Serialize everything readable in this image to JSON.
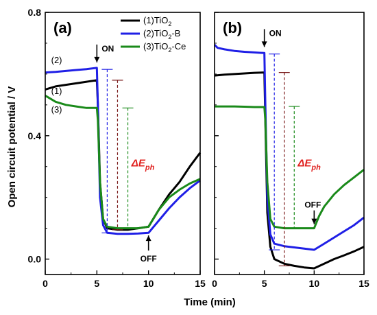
{
  "chart_data": [
    {
      "type": "line",
      "panel_label": "(a)",
      "xlabel": "Time (min)",
      "ylabel": "Open circuit potential / V",
      "xlim": [
        0,
        15
      ],
      "ylim": [
        -0.05,
        0.8
      ],
      "xticks": [
        "0",
        "5",
        "10",
        "15"
      ],
      "yticks": [
        "0.0",
        "0.4",
        "0.8"
      ],
      "legend": {
        "placement": "top-right",
        "entries": [
          {
            "prefix": "(1)TiO",
            "sub": "2",
            "suffix": "",
            "color": "#000000"
          },
          {
            "prefix": "(2)TiO",
            "sub": "2",
            "suffix": "-B",
            "color": "#1f1fe6"
          },
          {
            "prefix": "(3)TiO",
            "sub": "2",
            "suffix": "-Ce",
            "color": "#1a8a1a"
          }
        ]
      },
      "series": [
        {
          "name": "(1)TiO2",
          "color": "#000000",
          "x": [
            0,
            1,
            2,
            3,
            4,
            5,
            5.1,
            5.3,
            5.6,
            6,
            7,
            8,
            9,
            10,
            11,
            12,
            13,
            14,
            15
          ],
          "y": [
            0.55,
            0.56,
            0.565,
            0.57,
            0.575,
            0.58,
            0.5,
            0.25,
            0.13,
            0.1,
            0.095,
            0.095,
            0.1,
            0.105,
            0.16,
            0.21,
            0.25,
            0.3,
            0.345
          ]
        },
        {
          "name": "(2)TiO2-B",
          "color": "#1f1fe6",
          "x": [
            0,
            1,
            2,
            3,
            4,
            5,
            5.1,
            5.3,
            5.6,
            6,
            7,
            8,
            9,
            10,
            11,
            12,
            13,
            14,
            15
          ],
          "y": [
            0.605,
            0.607,
            0.61,
            0.613,
            0.616,
            0.62,
            0.5,
            0.2,
            0.11,
            0.085,
            0.082,
            0.082,
            0.083,
            0.085,
            0.125,
            0.165,
            0.2,
            0.23,
            0.255
          ]
        },
        {
          "name": "(3)TiO2-Ce",
          "color": "#1a8a1a",
          "x": [
            0,
            1,
            2,
            3,
            4,
            5,
            5.1,
            5.3,
            5.6,
            6,
            7,
            8,
            9,
            10,
            11,
            12,
            13,
            14,
            15
          ],
          "y": [
            0.53,
            0.51,
            0.5,
            0.495,
            0.49,
            0.49,
            0.45,
            0.25,
            0.13,
            0.105,
            0.1,
            0.1,
            0.1,
            0.105,
            0.16,
            0.2,
            0.225,
            0.245,
            0.26
          ]
        }
      ],
      "curve_labels": [
        {
          "text": "(2)",
          "x": 1.1,
          "y": 0.635
        },
        {
          "text": "(1)",
          "x": 1.1,
          "y": 0.535
        },
        {
          "text": "(3)",
          "x": 1.1,
          "y": 0.475
        }
      ],
      "annotations": {
        "on": {
          "text": "ON",
          "x": 5.0
        },
        "off": {
          "text": "OFF",
          "x": 10.0
        },
        "eph": {
          "text": "ΔE",
          "sub": "ph",
          "x": 8.35,
          "y": 0.3
        }
      },
      "dashed_bars": [
        {
          "x": 6.0,
          "top": 0.615,
          "bottom": 0.085,
          "color": "#1f1fe6"
        },
        {
          "x": 7.0,
          "top": 0.58,
          "bottom": 0.095,
          "color": "#7a1a1a"
        },
        {
          "x": 8.0,
          "top": 0.49,
          "bottom": 0.1,
          "color": "#1a8a1a"
        }
      ]
    },
    {
      "type": "line",
      "panel_label": "(b)",
      "xlabel": "Time (min)",
      "xlim": [
        0,
        15
      ],
      "ylim": [
        -0.05,
        0.8
      ],
      "xticks": [
        "0",
        "5",
        "10",
        "15"
      ],
      "series": [
        {
          "name": "(1)TiO2",
          "color": "#000000",
          "x": [
            0,
            1,
            2,
            3,
            4,
            5,
            5.1,
            5.3,
            5.6,
            6,
            7,
            8,
            9,
            10,
            11,
            12,
            13,
            14,
            15
          ],
          "y": [
            0.595,
            0.598,
            0.6,
            0.602,
            0.604,
            0.605,
            0.45,
            0.15,
            0.04,
            0.0,
            -0.015,
            -0.022,
            -0.027,
            -0.03,
            -0.015,
            0.0,
            0.012,
            0.025,
            0.04
          ]
        },
        {
          "name": "(2)TiO2-B",
          "color": "#1f1fe6",
          "x": [
            0,
            0.3,
            1,
            2,
            3,
            4,
            5,
            5.1,
            5.3,
            5.6,
            6,
            7,
            8,
            9,
            10,
            11,
            12,
            13,
            14,
            15
          ],
          "y": [
            0.695,
            0.685,
            0.68,
            0.675,
            0.672,
            0.67,
            0.668,
            0.5,
            0.2,
            0.08,
            0.05,
            0.042,
            0.038,
            0.034,
            0.03,
            0.05,
            0.07,
            0.09,
            0.11,
            0.135
          ]
        },
        {
          "name": "(3)TiO2-Ce",
          "color": "#1a8a1a",
          "x": [
            0,
            1,
            2,
            3,
            4,
            5,
            5.1,
            5.3,
            5.6,
            6,
            7,
            8,
            9,
            10,
            10.5,
            11,
            12,
            13,
            14,
            15
          ],
          "y": [
            0.495,
            0.495,
            0.495,
            0.494,
            0.493,
            0.493,
            0.45,
            0.25,
            0.13,
            0.105,
            0.1,
            0.1,
            0.1,
            0.1,
            0.14,
            0.17,
            0.21,
            0.24,
            0.265,
            0.29
          ]
        }
      ],
      "annotations": {
        "on": {
          "text": "ON",
          "x": 5.0
        },
        "off": {
          "text": "OFF",
          "x": 10.0
        },
        "eph": {
          "text": "ΔE",
          "sub": "ph",
          "x": 8.35,
          "y": 0.3
        }
      },
      "dashed_bars": [
        {
          "x": 6.0,
          "top": 0.665,
          "bottom": 0.03,
          "color": "#1f1fe6"
        },
        {
          "x": 7.0,
          "top": 0.605,
          "bottom": -0.022,
          "color": "#7a1a1a"
        },
        {
          "x": 8.0,
          "top": 0.495,
          "bottom": 0.1,
          "color": "#1a8a1a"
        }
      ]
    }
  ]
}
